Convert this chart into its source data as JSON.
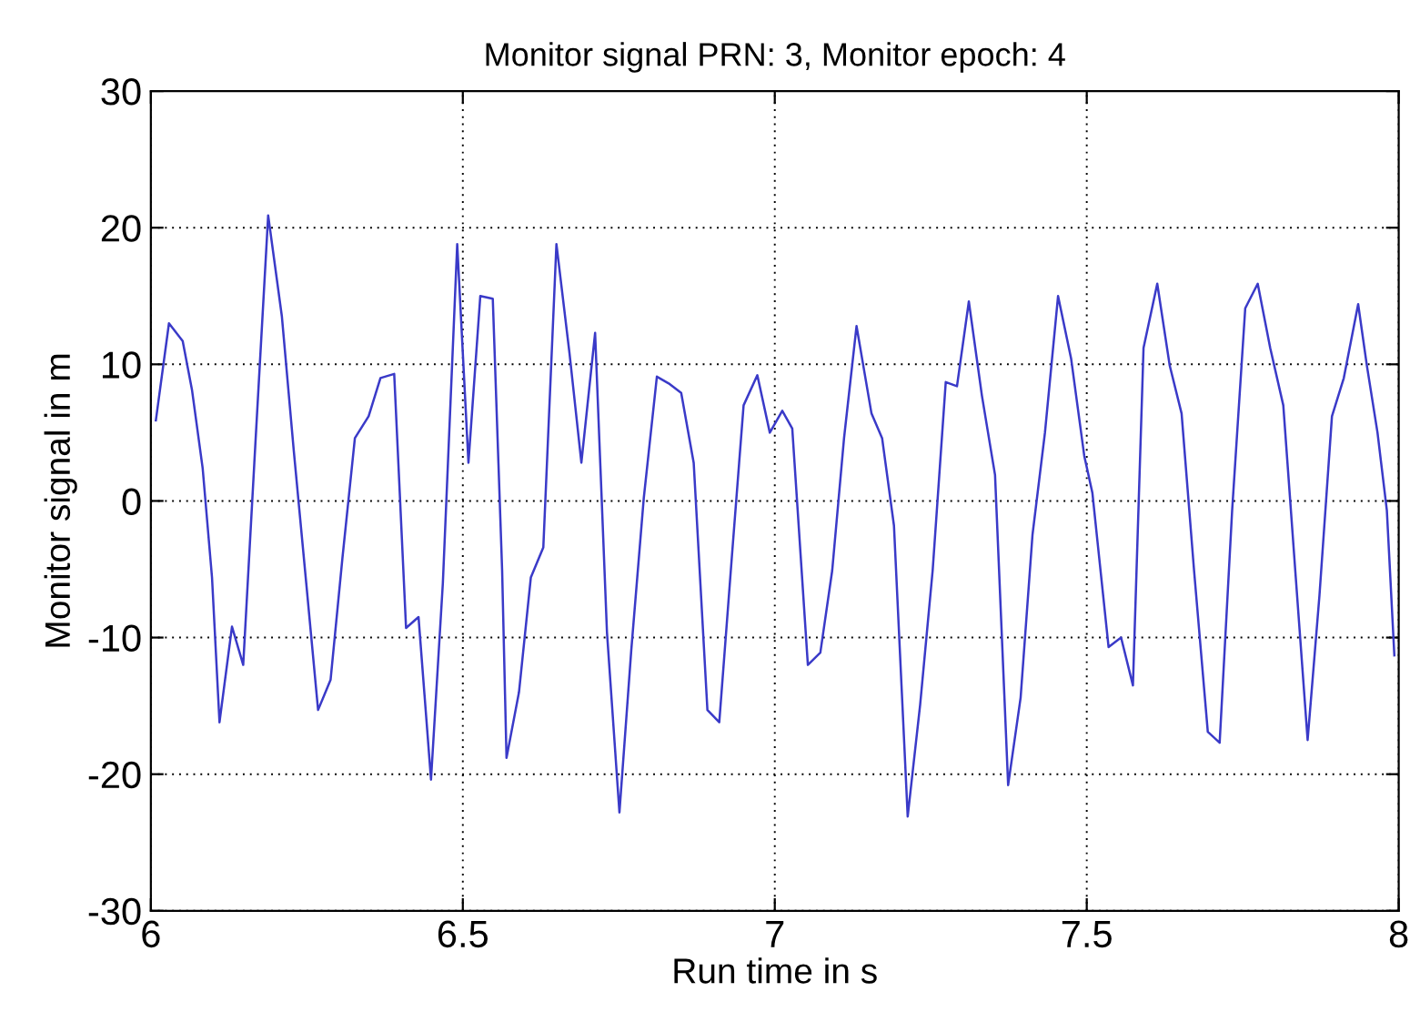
{
  "chart_data": {
    "type": "line",
    "title": "Monitor signal PRN: 3, Monitor epoch: 4",
    "xlabel": "Run time in s",
    "ylabel": "Monitor signal in m",
    "xlim": [
      6,
      8
    ],
    "ylim": [
      -30,
      30
    ],
    "xticks": [
      6,
      6.5,
      7,
      7.5,
      8
    ],
    "yticks": [
      -30,
      -20,
      -10,
      0,
      10,
      20,
      30
    ],
    "grid": true,
    "line_style": "solid",
    "marker": "none",
    "series": [
      {
        "color": "#3a3ac8",
        "x": [
          6.008,
          6.029,
          6.051,
          6.066,
          6.083,
          6.098,
          6.11,
          6.13,
          6.148,
          6.168,
          6.188,
          6.21,
          6.229,
          6.249,
          6.268,
          6.288,
          6.307,
          6.327,
          6.349,
          6.368,
          6.39,
          6.409,
          6.429,
          6.449,
          6.468,
          6.491,
          6.509,
          6.528,
          6.548,
          6.563,
          6.57,
          6.59,
          6.609,
          6.629,
          6.65,
          6.671,
          6.69,
          6.712,
          6.731,
          6.751,
          6.77,
          6.79,
          6.811,
          6.83,
          6.85,
          6.87,
          6.892,
          6.911,
          6.931,
          6.95,
          6.972,
          6.992,
          7.012,
          7.028,
          7.053,
          7.073,
          7.092,
          7.111,
          7.131,
          7.155,
          7.172,
          7.191,
          7.213,
          7.233,
          7.253,
          7.274,
          7.292,
          7.311,
          7.332,
          7.353,
          7.374,
          7.394,
          7.413,
          7.433,
          7.454,
          7.475,
          7.496,
          7.509,
          7.52,
          7.535,
          7.555,
          7.574,
          7.591,
          7.613,
          7.633,
          7.652,
          7.672,
          7.694,
          7.713,
          7.733,
          7.754,
          7.774,
          7.794,
          7.815,
          7.835,
          7.854,
          7.873,
          7.893,
          7.912,
          7.935,
          7.949,
          7.966,
          7.981,
          7.993
        ],
        "values": [
          5.9,
          13.0,
          11.7,
          8.1,
          2.4,
          -5.6,
          -16.2,
          -9.2,
          -12.0,
          4.6,
          20.9,
          13.5,
          3.7,
          -6.0,
          -15.3,
          -13.1,
          -4.2,
          4.6,
          6.2,
          9.0,
          9.3,
          -9.3,
          -8.5,
          -20.4,
          -6.0,
          18.8,
          2.8,
          15.0,
          14.8,
          -5.1,
          -18.8,
          -14.0,
          -5.6,
          -3.4,
          18.8,
          10.8,
          2.8,
          12.3,
          -9.6,
          -22.8,
          -10.9,
          0.2,
          9.1,
          8.6,
          7.9,
          2.8,
          -15.3,
          -16.2,
          -4.2,
          7.0,
          9.2,
          5.0,
          6.6,
          5.3,
          -12.0,
          -11.1,
          -5.1,
          4.6,
          12.8,
          6.4,
          4.6,
          -1.8,
          -23.1,
          -14.9,
          -5.1,
          8.7,
          8.4,
          14.6,
          7.7,
          1.9,
          -20.8,
          -14.4,
          -2.5,
          5.0,
          15.0,
          10.4,
          3.3,
          0.6,
          -4.2,
          -10.7,
          -10.0,
          -13.5,
          11.2,
          15.9,
          9.9,
          6.4,
          -5.1,
          -16.9,
          -17.7,
          -0.7,
          14.1,
          15.9,
          11.2,
          7.0,
          -5.6,
          -17.5,
          -6.9,
          6.2,
          9.0,
          14.4,
          9.9,
          5.0,
          -0.7,
          -11.3
        ]
      }
    ]
  }
}
